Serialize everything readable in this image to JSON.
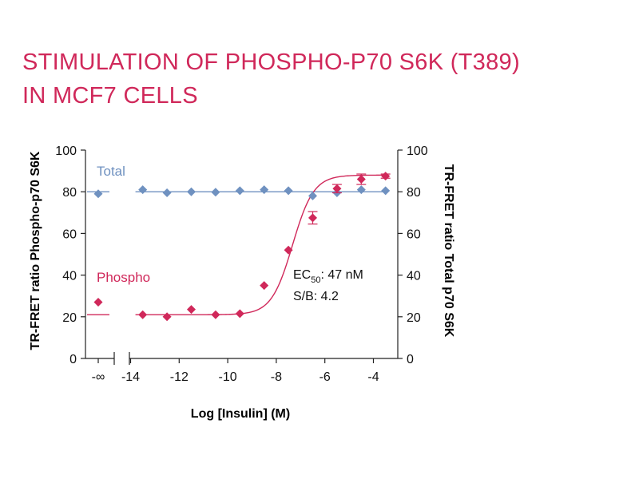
{
  "title_lines": [
    "STIMULATION OF PHOSPHO-P70 S6K (T389)",
    "IN MCF7 CELLS"
  ],
  "colors": {
    "title": "#d0285a",
    "phospho": "#d0285a",
    "total": "#6f91c0",
    "axis": "#222222"
  },
  "chart_data": {
    "type": "scatter",
    "xlabel": "Log [Insulin] (M)",
    "ylabel_left": "TR-FRET ratio Phospho-p70 S6K",
    "ylabel_right": "TR-FRET ratio Total p70 S6K",
    "xlim": [
      -14.2,
      -3.2
    ],
    "ylim": [
      0,
      100
    ],
    "x_ticks": [
      -14,
      -12,
      -10,
      -8,
      -6,
      -4
    ],
    "x_tick_labels": [
      "-14",
      "-12",
      "-10",
      "-8",
      "-6",
      "-4"
    ],
    "x_break_label": "-∞",
    "y_ticks": [
      0,
      20,
      40,
      60,
      80,
      100
    ],
    "y_tick_labels": [
      "0",
      "20",
      "40",
      "60",
      "80",
      "100"
    ],
    "series": [
      {
        "name": "Total",
        "label": "Total",
        "marker": "diamond",
        "zero_value": 79,
        "x": [
          -13.5,
          -12.5,
          -11.5,
          -10.5,
          -9.5,
          -8.5,
          -7.5,
          -6.5,
          -5.5,
          -4.5,
          -3.5
        ],
        "values": [
          81,
          79.5,
          80,
          79.8,
          80.5,
          81,
          80.5,
          78,
          79.5,
          81,
          80.5
        ],
        "fit_level": 80
      },
      {
        "name": "Phospho",
        "label": "Phospho",
        "marker": "diamond",
        "zero_value": 27,
        "x": [
          -13.5,
          -12.5,
          -11.5,
          -10.5,
          -9.5,
          -8.5,
          -7.5,
          -6.5,
          -5.5,
          -4.5,
          -3.5
        ],
        "values": [
          21,
          20,
          23.5,
          21,
          21.5,
          35,
          52,
          67.5,
          81.5,
          86,
          87.5
        ],
        "errors": [
          0,
          0,
          0,
          0,
          0,
          0,
          0,
          3,
          2,
          2.5,
          1
        ],
        "fit": {
          "bottom": 21,
          "top": 88,
          "log_ec50": -7.33,
          "hill": 1.0
        }
      }
    ],
    "annotations": {
      "ec50_prefix": "EC",
      "ec50_sub": "50",
      "ec50_value": ": 47 nM",
      "sb": "S/B: 4.2"
    }
  }
}
